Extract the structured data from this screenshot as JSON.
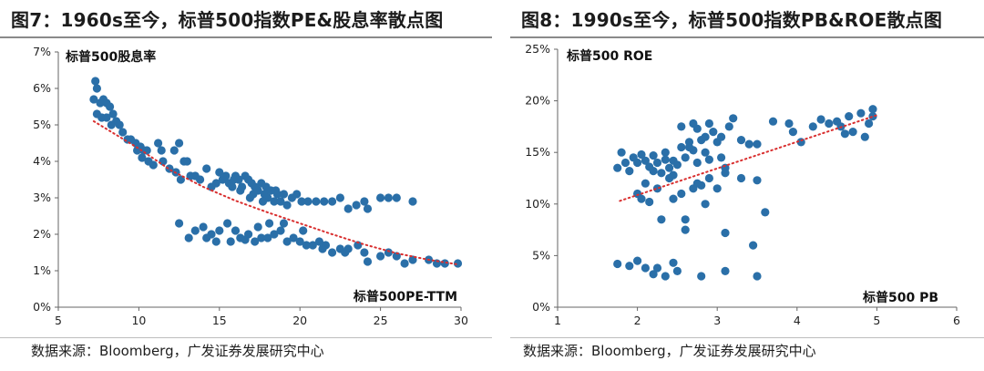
{
  "charts": [
    {
      "id": "left",
      "figure_title": "图7：1960s至今，标普500指数PE&股息率散点图",
      "source": "数据来源：Bloomberg，广发证券发展研究中心"
    },
    {
      "id": "right",
      "figure_title": "图8：1990s至今，标普500指数PB&ROE散点图",
      "source": "数据来源：Bloomberg，广发证券发展研究中心"
    }
  ],
  "colors": {
    "point": "#2a6fa8",
    "trend": "#d93030",
    "axis": "#666666"
  },
  "chart_data": [
    {
      "type": "scatter",
      "title": "图7：1960s至今，标普500指数PE&股息率散点图",
      "xlabel": "标普500PE-TTM",
      "ylabel": "标普500股息率",
      "xlim": [
        5,
        30
      ],
      "ylim": [
        0,
        7
      ],
      "x_ticks": [
        5,
        10,
        15,
        20,
        25,
        30
      ],
      "x_tick_labels": [
        "5",
        "10",
        "15",
        "20",
        "25",
        "30"
      ],
      "y_ticks": [
        0,
        1,
        2,
        3,
        4,
        5,
        6,
        7
      ],
      "y_tick_labels": [
        "0%",
        "1%",
        "2%",
        "3%",
        "4%",
        "5%",
        "6%",
        "7%"
      ],
      "grid": false,
      "trendline": {
        "style": "dotted",
        "points": [
          [
            7.2,
            5.1
          ],
          [
            10,
            4.35
          ],
          [
            12,
            3.75
          ],
          [
            14,
            3.3
          ],
          [
            16,
            2.92
          ],
          [
            18,
            2.6
          ],
          [
            20,
            2.3
          ],
          [
            22,
            2.0
          ],
          [
            24,
            1.72
          ],
          [
            26,
            1.48
          ],
          [
            28,
            1.3
          ],
          [
            29.7,
            1.18
          ]
        ]
      },
      "series": [
        {
          "points": [
            [
              7.3,
              6.2
            ],
            [
              7.4,
              6.0
            ],
            [
              7.2,
              5.7
            ],
            [
              7.6,
              5.6
            ],
            [
              7.8,
              5.7
            ],
            [
              8.0,
              5.6
            ],
            [
              8.2,
              5.5
            ],
            [
              8.4,
              5.3
            ],
            [
              8.6,
              5.1
            ],
            [
              8.8,
              5.0
            ],
            [
              7.4,
              5.3
            ],
            [
              7.7,
              5.2
            ],
            [
              8.0,
              5.2
            ],
            [
              8.3,
              5.0
            ],
            [
              9.0,
              4.8
            ],
            [
              9.3,
              4.6
            ],
            [
              9.5,
              4.6
            ],
            [
              9.8,
              4.5
            ],
            [
              10.1,
              4.4
            ],
            [
              10.3,
              4.3
            ],
            [
              9.9,
              4.3
            ],
            [
              10.5,
              4.3
            ],
            [
              10.2,
              4.1
            ],
            [
              10.6,
              4.0
            ],
            [
              10.9,
              3.9
            ],
            [
              11.2,
              4.5
            ],
            [
              11.4,
              4.3
            ],
            [
              11.5,
              4.0
            ],
            [
              11.9,
              3.8
            ],
            [
              12.2,
              4.3
            ],
            [
              12.5,
              4.5
            ],
            [
              12.3,
              3.7
            ],
            [
              12.6,
              3.5
            ],
            [
              12.8,
              4.0
            ],
            [
              13.0,
              4.0
            ],
            [
              13.2,
              3.6
            ],
            [
              13.5,
              3.6
            ],
            [
              13.8,
              3.5
            ],
            [
              14.2,
              3.8
            ],
            [
              14.5,
              3.3
            ],
            [
              14.8,
              3.4
            ],
            [
              15.0,
              3.7
            ],
            [
              15.2,
              3.5
            ],
            [
              15.4,
              3.6
            ],
            [
              15.6,
              3.4
            ],
            [
              15.8,
              3.3
            ],
            [
              16.0,
              3.6
            ],
            [
              16.2,
              3.5
            ],
            [
              16.4,
              3.3
            ],
            [
              16.6,
              3.6
            ],
            [
              16.8,
              3.5
            ],
            [
              17.0,
              3.4
            ],
            [
              17.2,
              3.3
            ],
            [
              17.4,
              3.2
            ],
            [
              17.6,
              3.4
            ],
            [
              17.8,
              3.1
            ],
            [
              18.0,
              3.0
            ],
            [
              18.2,
              3.2
            ],
            [
              18.4,
              2.9
            ],
            [
              18.6,
              3.1
            ],
            [
              18.8,
              2.9
            ],
            [
              19.0,
              3.1
            ],
            [
              19.2,
              2.8
            ],
            [
              19.5,
              3.0
            ],
            [
              19.8,
              3.1
            ],
            [
              20.1,
              2.9
            ],
            [
              20.5,
              2.9
            ],
            [
              21.0,
              2.9
            ],
            [
              21.5,
              2.9
            ],
            [
              22.0,
              2.9
            ],
            [
              22.5,
              3.0
            ],
            [
              23.0,
              2.7
            ],
            [
              23.5,
              2.8
            ],
            [
              24.0,
              2.9
            ],
            [
              25.0,
              3.0
            ],
            [
              25.5,
              3.0
            ],
            [
              26.0,
              3.0
            ],
            [
              27.0,
              2.9
            ],
            [
              24.2,
              2.7
            ],
            [
              16.3,
              3.2
            ],
            [
              17.1,
              3.1
            ],
            [
              17.9,
              3.3
            ],
            [
              18.5,
              3.2
            ],
            [
              15.9,
              3.5
            ],
            [
              16.9,
              3.0
            ],
            [
              17.7,
              2.9
            ],
            [
              12.5,
              2.3
            ],
            [
              13.5,
              2.1
            ],
            [
              14.0,
              2.2
            ],
            [
              14.5,
              2.0
            ],
            [
              15.0,
              2.1
            ],
            [
              15.5,
              2.3
            ],
            [
              16.0,
              2.1
            ],
            [
              16.3,
              1.9
            ],
            [
              16.8,
              2.0
            ],
            [
              17.2,
              1.8
            ],
            [
              17.6,
              1.9
            ],
            [
              18.0,
              1.9
            ],
            [
              18.4,
              2.0
            ],
            [
              18.8,
              2.1
            ],
            [
              19.2,
              1.8
            ],
            [
              19.6,
              1.9
            ],
            [
              20.0,
              1.8
            ],
            [
              20.4,
              1.7
            ],
            [
              20.8,
              1.7
            ],
            [
              21.2,
              1.8
            ],
            [
              21.6,
              1.7
            ],
            [
              22.0,
              1.5
            ],
            [
              22.5,
              1.6
            ],
            [
              23.0,
              1.6
            ],
            [
              24.0,
              1.5
            ],
            [
              25.0,
              1.4
            ],
            [
              26.0,
              1.4
            ],
            [
              27.0,
              1.3
            ],
            [
              28.0,
              1.3
            ],
            [
              29.0,
              1.2
            ],
            [
              29.8,
              1.2
            ],
            [
              24.2,
              1.25
            ],
            [
              26.5,
              1.2
            ],
            [
              14.8,
              1.8
            ],
            [
              15.7,
              1.8
            ],
            [
              16.6,
              1.85
            ],
            [
              17.4,
              2.2
            ],
            [
              18.1,
              2.3
            ],
            [
              19.0,
              2.3
            ],
            [
              20.2,
              2.1
            ],
            [
              21.4,
              1.6
            ],
            [
              22.8,
              1.5
            ],
            [
              23.6,
              1.7
            ],
            [
              25.5,
              1.5
            ],
            [
              28.5,
              1.2
            ],
            [
              13.1,
              1.9
            ],
            [
              14.2,
              1.9
            ]
          ]
        }
      ]
    },
    {
      "type": "scatter",
      "title": "图8：1990s至今，标普500指数PB&ROE散点图",
      "xlabel": "标普500 PB",
      "ylabel": "标普500 ROE",
      "xlim": [
        1,
        6
      ],
      "ylim": [
        0,
        25
      ],
      "x_ticks": [
        1,
        2,
        3,
        4,
        5,
        6
      ],
      "x_tick_labels": [
        "1",
        "2",
        "3",
        "4",
        "5",
        "6"
      ],
      "y_ticks": [
        0,
        5,
        10,
        15,
        20,
        25
      ],
      "y_tick_labels": [
        "0%",
        "5%",
        "10%",
        "15%",
        "20%",
        "25%"
      ],
      "grid": false,
      "trendline": {
        "style": "dotted",
        "points": [
          [
            1.78,
            10.3
          ],
          [
            5.0,
            18.6
          ]
        ]
      },
      "series": [
        {
          "points": [
            [
              1.75,
              13.5
            ],
            [
              1.8,
              15.0
            ],
            [
              1.85,
              14.0
            ],
            [
              1.9,
              13.2
            ],
            [
              1.95,
              14.5
            ],
            [
              2.0,
              14.0
            ],
            [
              2.05,
              14.8
            ],
            [
              2.1,
              14.2
            ],
            [
              2.15,
              13.6
            ],
            [
              2.2,
              14.7
            ],
            [
              2.25,
              14.0
            ],
            [
              2.3,
              13.0
            ],
            [
              2.35,
              14.3
            ],
            [
              2.4,
              13.5
            ],
            [
              2.45,
              14.2
            ],
            [
              2.5,
              13.8
            ],
            [
              2.55,
              15.5
            ],
            [
              2.6,
              14.5
            ],
            [
              2.65,
              16.0
            ],
            [
              2.7,
              15.2
            ],
            [
              2.75,
              17.3
            ],
            [
              2.8,
              16.2
            ],
            [
              2.85,
              15.0
            ],
            [
              2.9,
              14.3
            ],
            [
              2.95,
              17.0
            ],
            [
              3.0,
              16.0
            ],
            [
              3.05,
              14.5
            ],
            [
              3.1,
              13.5
            ],
            [
              3.15,
              17.5
            ],
            [
              3.2,
              18.3
            ],
            [
              3.3,
              16.2
            ],
            [
              3.4,
              15.8
            ],
            [
              3.5,
              15.8
            ],
            [
              2.0,
              11.0
            ],
            [
              2.05,
              10.5
            ],
            [
              2.1,
              12.0
            ],
            [
              2.15,
              10.2
            ],
            [
              2.25,
              11.5
            ],
            [
              2.3,
              8.5
            ],
            [
              2.4,
              12.5
            ],
            [
              2.45,
              10.5
            ],
            [
              2.55,
              11.0
            ],
            [
              2.6,
              8.5
            ],
            [
              2.6,
              7.5
            ],
            [
              2.7,
              11.5
            ],
            [
              2.75,
              12.0
            ],
            [
              2.8,
              11.8
            ],
            [
              2.85,
              10.0
            ],
            [
              2.9,
              12.5
            ],
            [
              3.0,
              11.5
            ],
            [
              3.1,
              13.0
            ],
            [
              3.3,
              12.5
            ],
            [
              3.5,
              12.3
            ],
            [
              3.1,
              7.2
            ],
            [
              3.6,
              9.2
            ],
            [
              2.65,
              15.5
            ],
            [
              2.75,
              14.0
            ],
            [
              2.85,
              16.5
            ],
            [
              2.55,
              17.5
            ],
            [
              2.7,
              17.8
            ],
            [
              2.9,
              17.8
            ],
            [
              3.05,
              16.5
            ],
            [
              2.45,
              12.8
            ],
            [
              2.2,
              13.2
            ],
            [
              2.35,
              15.0
            ],
            [
              1.75,
              4.2
            ],
            [
              1.9,
              4.0
            ],
            [
              2.0,
              4.5
            ],
            [
              2.1,
              3.8
            ],
            [
              2.2,
              3.2
            ],
            [
              2.25,
              3.8
            ],
            [
              2.35,
              3.0
            ],
            [
              2.45,
              4.3
            ],
            [
              2.5,
              3.5
            ],
            [
              2.8,
              3.0
            ],
            [
              3.1,
              3.5
            ],
            [
              3.45,
              6.0
            ],
            [
              3.5,
              3.0
            ],
            [
              3.7,
              18.0
            ],
            [
              3.9,
              17.8
            ],
            [
              3.95,
              17.0
            ],
            [
              4.05,
              16.0
            ],
            [
              4.4,
              17.8
            ],
            [
              4.5,
              18.0
            ],
            [
              4.55,
              17.5
            ],
            [
              4.65,
              18.5
            ],
            [
              4.8,
              18.8
            ],
            [
              4.9,
              17.8
            ],
            [
              4.95,
              19.2
            ],
            [
              4.95,
              18.5
            ],
            [
              4.7,
              17.0
            ],
            [
              4.85,
              16.5
            ],
            [
              4.3,
              18.2
            ],
            [
              4.2,
              17.5
            ],
            [
              4.6,
              16.8
            ]
          ]
        }
      ]
    }
  ]
}
